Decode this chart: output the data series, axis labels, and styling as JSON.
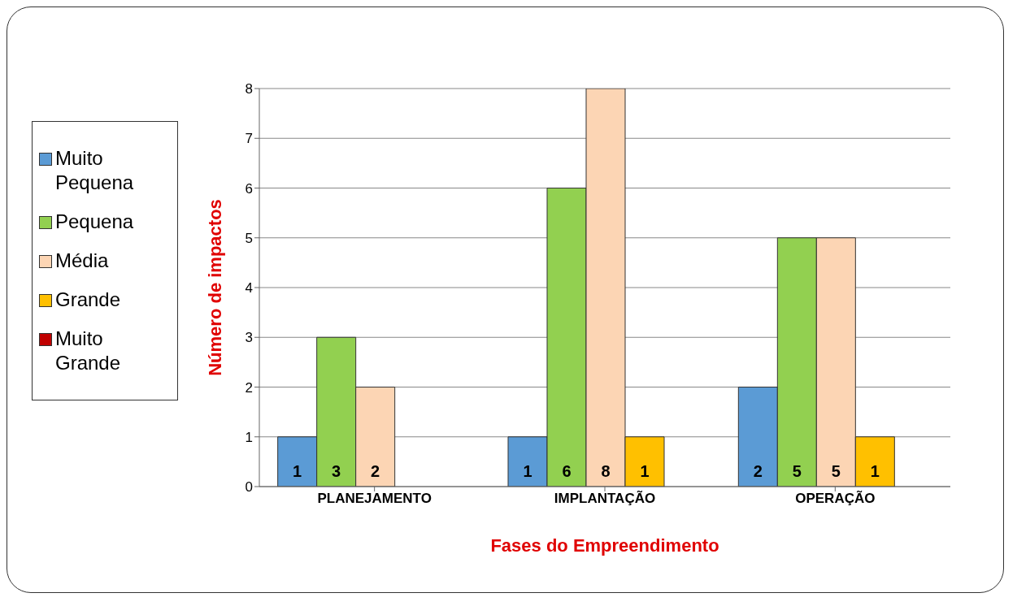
{
  "chart_data": {
    "type": "bar",
    "xlabel": "Fases do Empreendimento",
    "ylabel": "Número de impactos",
    "categories": [
      "PLANEJAMENTO",
      "IMPLANTAÇÃO",
      "OPERAÇÃO"
    ],
    "series": [
      {
        "name": "Muito Pequena",
        "color": "#5b9bd5",
        "values": [
          1,
          1,
          2
        ],
        "value_labels": [
          "1",
          "1",
          "2"
        ]
      },
      {
        "name": "Pequena",
        "color": "#92d050",
        "values": [
          3,
          6,
          5
        ],
        "value_labels": [
          "3",
          "6",
          "5"
        ]
      },
      {
        "name": "Média",
        "color": "#fcd5b4",
        "values": [
          2,
          8,
          5
        ],
        "value_labels": [
          "2",
          "8",
          "5"
        ]
      },
      {
        "name": "Grande",
        "color": "#ffc000",
        "values": [
          0,
          1,
          1
        ],
        "value_labels": [
          null,
          "1",
          "1"
        ]
      },
      {
        "name": "Muito Grande",
        "color": "#c00000",
        "values": [
          0,
          0,
          0
        ],
        "value_labels": [
          null,
          null,
          null
        ]
      }
    ],
    "ylim": [
      0,
      8
    ],
    "yticks": [
      0,
      1,
      2,
      3,
      4,
      5,
      6,
      7,
      8
    ],
    "grid": "y",
    "legend": "left"
  }
}
